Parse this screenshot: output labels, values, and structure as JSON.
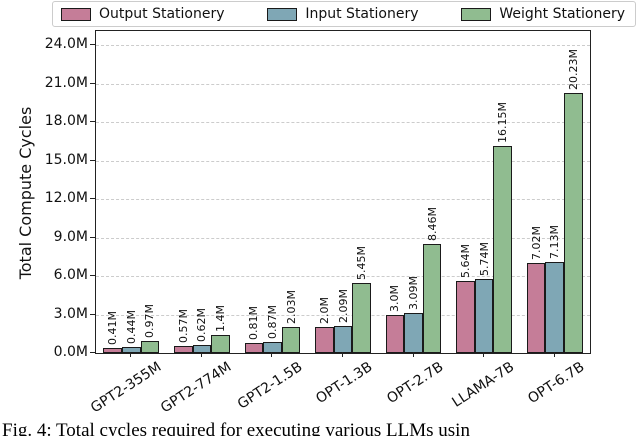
{
  "caption": {
    "text": "Fig. 4: Total cycles required for executing various LLMs usin"
  },
  "y_axis": {
    "label": "Total Compute Cycles",
    "tick_labels": [
      "0.0M",
      "3.0M",
      "6.0M",
      "9.0M",
      "12.0M",
      "15.0M",
      "18.0M",
      "21.0M",
      "24.0M"
    ]
  },
  "x_axis": {
    "categories": [
      "GPT2-355M",
      "GPT2-774M",
      "GPT2-1.5B",
      "OPT-1.3B",
      "OPT-2.7B",
      "LLAMA-7B",
      "OPT-6.7B"
    ]
  },
  "colors": {
    "output_stationery": "#c57d98",
    "input_stationery": "#7fa7b5",
    "weight_stationery": "#90bc90",
    "bar_edge": "#1a1a1a",
    "grid": "#cccccc",
    "frame": "#222222"
  },
  "chart_data": {
    "type": "bar",
    "title": "",
    "xlabel": "",
    "ylabel": "Total Compute Cycles",
    "ylim": [
      0,
      24
    ],
    "ytick_step": 3,
    "y_unit": "M (millions of cycles)",
    "grid": "horizontal dashed, major ticks only",
    "legend_position": "top, horizontal, boxed",
    "categories": [
      "GPT2-355M",
      "GPT2-774M",
      "GPT2-1.5B",
      "OPT-1.3B",
      "OPT-2.7B",
      "LLAMA-7B",
      "OPT-6.7B"
    ],
    "series": [
      {
        "name": "Output Stationery",
        "color": "#c57d98",
        "values": [
          0.41,
          0.57,
          0.81,
          2.0,
          3.0,
          5.64,
          7.02
        ],
        "labels": [
          "0.41M",
          "0.57M",
          "0.81M",
          "2.0M",
          "3.0M",
          "5.64M",
          "7.02M"
        ]
      },
      {
        "name": "Input Stationery",
        "color": "#7fa7b5",
        "values": [
          0.44,
          0.62,
          0.87,
          2.09,
          3.09,
          5.74,
          7.13
        ],
        "labels": [
          "0.44M",
          "0.62M",
          "0.87M",
          "2.09M",
          "3.09M",
          "5.74M",
          "7.13M"
        ]
      },
      {
        "name": "Weight Stationery",
        "color": "#90bc90",
        "values": [
          0.97,
          1.4,
          2.03,
          5.45,
          8.46,
          16.15,
          20.23
        ],
        "labels": [
          "0.97M",
          "1.4M",
          "2.03M",
          "5.45M",
          "8.46M",
          "16.15M",
          "20.23M"
        ]
      }
    ]
  }
}
